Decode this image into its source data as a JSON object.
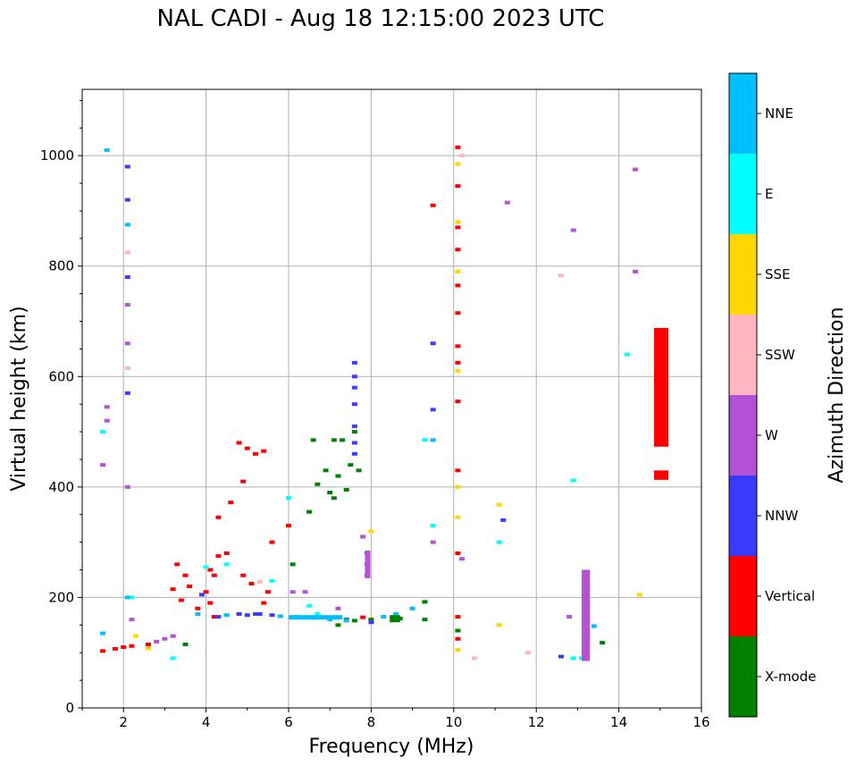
{
  "chart_data": {
    "type": "scatter",
    "title": "NAL CADI - Aug 18 12:15:00 2023 UTC",
    "xlabel": "Frequency (MHz)",
    "ylabel": "Virtual height (km)",
    "xlim": [
      1,
      16
    ],
    "ylim": [
      0,
      1120
    ],
    "xticks": [
      "2",
      "4",
      "6",
      "8",
      "10",
      "12",
      "14",
      "16"
    ],
    "yticks": [
      "0",
      "200",
      "400",
      "600",
      "800",
      "1000"
    ],
    "grid": true,
    "colorbar": {
      "label": "Azimuth Direction",
      "entries": [
        {
          "name": "X-mode",
          "color": "#008000"
        },
        {
          "name": "Vertical",
          "color": "#ff0000"
        },
        {
          "name": "NNW",
          "color": "#3b3bff"
        },
        {
          "name": "W",
          "color": "#b452d6"
        },
        {
          "name": "SSW",
          "color": "#ffb6c1"
        },
        {
          "name": "SSE",
          "color": "#ffd700"
        },
        {
          "name": "E",
          "color": "#00ffff"
        },
        {
          "name": "NNE",
          "color": "#00bfff"
        }
      ]
    },
    "series": [
      {
        "name": "X-mode",
        "points": [
          [
            3.5,
            115
          ],
          [
            7.2,
            150
          ],
          [
            7.4,
            160
          ],
          [
            7.6,
            158
          ],
          [
            8.0,
            160
          ],
          [
            8.7,
            162
          ],
          [
            9.3,
            160
          ],
          [
            13.6,
            118
          ],
          [
            6.6,
            485
          ],
          [
            7.1,
            485
          ],
          [
            7.3,
            485
          ],
          [
            7.7,
            430
          ],
          [
            7.5,
            440
          ],
          [
            7.2,
            420
          ],
          [
            6.9,
            430
          ],
          [
            6.7,
            405
          ],
          [
            6.1,
            260
          ],
          [
            6.5,
            355
          ],
          [
            7.0,
            390
          ],
          [
            7.1,
            380
          ],
          [
            7.4,
            395
          ],
          [
            7.6,
            500
          ],
          [
            9.3,
            192
          ],
          [
            10.1,
            140
          ],
          [
            13.2,
            128
          ]
        ]
      },
      {
        "name": "Vertical",
        "points": [
          [
            1.5,
            103
          ],
          [
            1.8,
            107
          ],
          [
            2.0,
            110
          ],
          [
            2.2,
            112
          ],
          [
            2.6,
            115
          ],
          [
            3.2,
            215
          ],
          [
            3.4,
            195
          ],
          [
            3.6,
            220
          ],
          [
            3.8,
            180
          ],
          [
            4.0,
            210
          ],
          [
            4.1,
            190
          ],
          [
            4.2,
            240
          ],
          [
            4.3,
            275
          ],
          [
            4.5,
            280
          ],
          [
            4.2,
            165
          ],
          [
            3.3,
            260
          ],
          [
            3.5,
            240
          ],
          [
            4.8,
            480
          ],
          [
            5.0,
            470
          ],
          [
            5.2,
            460
          ],
          [
            5.4,
            465
          ],
          [
            4.3,
            345
          ],
          [
            4.6,
            372
          ],
          [
            4.9,
            240
          ],
          [
            5.1,
            225
          ],
          [
            5.4,
            190
          ],
          [
            5.5,
            210
          ],
          [
            6.0,
            330
          ],
          [
            7.8,
            164
          ],
          [
            9.5,
            910
          ],
          [
            10.1,
            1015
          ],
          [
            10.1,
            945
          ],
          [
            10.1,
            870
          ],
          [
            10.1,
            830
          ],
          [
            10.1,
            765
          ],
          [
            10.1,
            715
          ],
          [
            10.1,
            655
          ],
          [
            10.1,
            625
          ],
          [
            10.1,
            555
          ],
          [
            10.1,
            430
          ],
          [
            10.1,
            280
          ],
          [
            10.1,
            165
          ],
          [
            10.1,
            125
          ],
          [
            13.2,
            200
          ],
          [
            13.2,
            180
          ],
          [
            13.2,
            150
          ],
          [
            15.0,
            580
          ],
          [
            15.0,
            420
          ],
          [
            4.9,
            410
          ],
          [
            5.6,
            300
          ],
          [
            4.1,
            250
          ]
        ]
      },
      {
        "name": "NNW",
        "points": [
          [
            5.0,
            168
          ],
          [
            5.3,
            170
          ],
          [
            5.6,
            168
          ],
          [
            8.0,
            155
          ],
          [
            7.6,
            625
          ],
          [
            7.6,
            600
          ],
          [
            7.6,
            580
          ],
          [
            7.6,
            550
          ],
          [
            7.6,
            510
          ],
          [
            7.6,
            480
          ],
          [
            7.6,
            460
          ],
          [
            9.5,
            660
          ],
          [
            9.5,
            540
          ],
          [
            11.2,
            340
          ],
          [
            12.6,
            93
          ],
          [
            4.8,
            170
          ],
          [
            5.2,
            170
          ],
          [
            2.1,
            980
          ],
          [
            2.1,
            920
          ],
          [
            2.1,
            780
          ],
          [
            2.1,
            570
          ],
          [
            3.9,
            205
          ],
          [
            4.3,
            165
          ]
        ]
      },
      {
        "name": "W",
        "points": [
          [
            2.8,
            120
          ],
          [
            3.0,
            125
          ],
          [
            3.2,
            130
          ],
          [
            7.9,
            260
          ],
          [
            7.9,
            240
          ],
          [
            7.9,
            280
          ],
          [
            7.8,
            310
          ],
          [
            12.8,
            165
          ],
          [
            12.9,
            865
          ],
          [
            13.2,
            245
          ],
          [
            13.2,
            225
          ],
          [
            13.2,
            195
          ],
          [
            13.2,
            160
          ],
          [
            13.2,
            135
          ],
          [
            13.2,
            110
          ],
          [
            14.4,
            975
          ],
          [
            14.4,
            790
          ],
          [
            6.1,
            210
          ],
          [
            6.4,
            210
          ],
          [
            7.2,
            180
          ],
          [
            2.1,
            730
          ],
          [
            2.1,
            660
          ],
          [
            2.1,
            400
          ],
          [
            1.6,
            545
          ],
          [
            1.6,
            520
          ],
          [
            1.5,
            440
          ],
          [
            11.3,
            915
          ],
          [
            10.2,
            270
          ],
          [
            9.5,
            300
          ],
          [
            2.2,
            160
          ]
        ]
      },
      {
        "name": "SSW",
        "points": [
          [
            12.6,
            783
          ],
          [
            10.5,
            90
          ],
          [
            11.8,
            100
          ],
          [
            2.1,
            825
          ],
          [
            2.1,
            615
          ],
          [
            10.2,
            1000
          ],
          [
            5.3,
            228
          ]
        ]
      },
      {
        "name": "SSE",
        "points": [
          [
            10.1,
            985
          ],
          [
            10.1,
            880
          ],
          [
            10.1,
            790
          ],
          [
            10.1,
            610
          ],
          [
            10.1,
            400
          ],
          [
            10.1,
            345
          ],
          [
            10.1,
            105
          ],
          [
            11.1,
            368
          ],
          [
            11.1,
            150
          ],
          [
            14.5,
            205
          ],
          [
            8.0,
            320
          ],
          [
            2.3,
            130
          ],
          [
            2.6,
            108
          ]
        ]
      },
      {
        "name": "E",
        "points": [
          [
            4.0,
            255
          ],
          [
            4.5,
            260
          ],
          [
            5.6,
            230
          ],
          [
            6.0,
            380
          ],
          [
            6.5,
            185
          ],
          [
            6.7,
            170
          ],
          [
            9.3,
            485
          ],
          [
            9.5,
            330
          ],
          [
            11.1,
            300
          ],
          [
            12.9,
            90
          ],
          [
            13.1,
            90
          ],
          [
            12.9,
            412
          ],
          [
            14.2,
            640
          ],
          [
            15.0,
            605
          ],
          [
            2.2,
            200
          ],
          [
            3.2,
            90
          ],
          [
            1.5,
            500
          ]
        ]
      },
      {
        "name": "NNE",
        "points": [
          [
            1.5,
            135
          ],
          [
            1.6,
            1010
          ],
          [
            3.8,
            170
          ],
          [
            4.5,
            168
          ],
          [
            5.8,
            166
          ],
          [
            6.2,
            165
          ],
          [
            6.6,
            163
          ],
          [
            7.0,
            160
          ],
          [
            7.4,
            158
          ],
          [
            8.3,
            165
          ],
          [
            8.6,
            170
          ],
          [
            9.0,
            180
          ],
          [
            13.4,
            148
          ],
          [
            13.2,
            100
          ],
          [
            2.1,
            875
          ],
          [
            2.1,
            200
          ],
          [
            9.5,
            485
          ]
        ]
      }
    ],
    "bars": [
      {
        "name": "Vertical",
        "x": [
          14.85,
          15.2
        ],
        "y": [
          473,
          688
        ]
      },
      {
        "name": "Vertical",
        "x": [
          14.85,
          15.2
        ],
        "y": [
          413,
          430
        ]
      },
      {
        "name": "W",
        "x": [
          13.1,
          13.3
        ],
        "y": [
          85,
          250
        ]
      },
      {
        "name": "W",
        "x": [
          7.85,
          7.98
        ],
        "y": [
          235,
          285
        ]
      },
      {
        "name": "X-mode",
        "x": [
          8.45,
          8.7
        ],
        "y": [
          155,
          168
        ]
      },
      {
        "name": "NNE",
        "x": [
          6.0,
          7.3
        ],
        "y": [
          160,
          168
        ]
      }
    ]
  }
}
